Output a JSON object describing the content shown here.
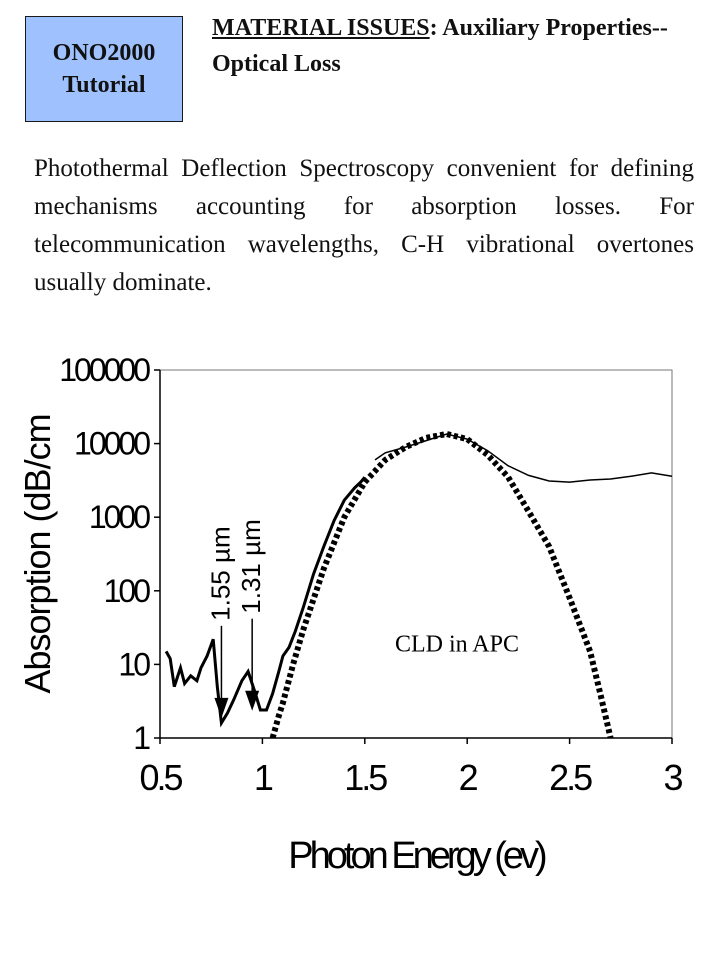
{
  "badge": {
    "line1": "ONO2000",
    "line2": "Tutorial"
  },
  "title": {
    "underlined": "MATERIAL ISSUES",
    "rest": ":  Auxiliary Properties--Optical Loss"
  },
  "body": "Photothermal Deflection Spectroscopy convenient for defining mechanisms accounting for absorption losses.  For telecommunication wavelengths, C-H vibrational overtones usually dominate.",
  "chart_data": {
    "type": "line",
    "xlabel": "Photon Energy (ev)",
    "ylabel": "Absorption (dB/cm",
    "xlim": [
      0.5,
      3
    ],
    "ylim": [
      1,
      100000
    ],
    "yscale": "log",
    "x_ticks": [
      "0.5",
      "1",
      "1.5",
      "2",
      "2.5",
      "3"
    ],
    "y_ticks": [
      "1",
      "10",
      "100",
      "1000",
      "10000",
      "100000"
    ],
    "grid": false,
    "annotations": [
      {
        "text": "1.55 µm",
        "arrow_x": 0.8,
        "arrow_y": 2
      },
      {
        "text": "1.31 µm",
        "arrow_x": 0.95,
        "arrow_y": 2.5
      },
      {
        "text": "CLD in APC",
        "x": 1.95,
        "y": 15
      }
    ],
    "series": [
      {
        "style": "solid",
        "points": [
          [
            0.53,
            15
          ],
          [
            0.55,
            12
          ],
          [
            0.57,
            5
          ],
          [
            0.6,
            9
          ],
          [
            0.62,
            5.5
          ],
          [
            0.65,
            7
          ],
          [
            0.68,
            6
          ],
          [
            0.7,
            9
          ],
          [
            0.73,
            13
          ],
          [
            0.76,
            22
          ],
          [
            0.78,
            5
          ],
          [
            0.8,
            1.6
          ],
          [
            0.83,
            2.2
          ],
          [
            0.86,
            3.3
          ],
          [
            0.9,
            6
          ],
          [
            0.93,
            8
          ],
          [
            0.96,
            4.5
          ],
          [
            0.99,
            2.4
          ],
          [
            1.02,
            2.4
          ],
          [
            1.05,
            4
          ],
          [
            1.08,
            8
          ],
          [
            1.1,
            13
          ],
          [
            1.13,
            17
          ],
          [
            1.16,
            28
          ],
          [
            1.2,
            60
          ],
          [
            1.25,
            170
          ],
          [
            1.3,
            400
          ],
          [
            1.35,
            900
          ],
          [
            1.4,
            1700
          ],
          [
            1.45,
            2500
          ],
          [
            1.48,
            3000
          ],
          [
            1.5,
            3500
          ]
        ]
      },
      {
        "style": "thin",
        "points": [
          [
            1.55,
            6000
          ],
          [
            1.6,
            7500
          ],
          [
            1.7,
            9000
          ],
          [
            1.8,
            11000
          ],
          [
            1.9,
            13500
          ],
          [
            2.0,
            11500
          ],
          [
            2.1,
            8000
          ],
          [
            2.2,
            5000
          ],
          [
            2.3,
            3700
          ],
          [
            2.4,
            3100
          ],
          [
            2.5,
            3000
          ],
          [
            2.6,
            3200
          ],
          [
            2.7,
            3300
          ],
          [
            2.8,
            3600
          ],
          [
            2.9,
            4000
          ],
          [
            3.0,
            3600
          ]
        ]
      },
      {
        "style": "dotted-thick",
        "points": [
          [
            1.05,
            1
          ],
          [
            1.08,
            2
          ],
          [
            1.1,
            3
          ],
          [
            1.15,
            10
          ],
          [
            1.2,
            30
          ],
          [
            1.3,
            200
          ],
          [
            1.4,
            1000
          ],
          [
            1.5,
            3000
          ],
          [
            1.6,
            6000
          ],
          [
            1.7,
            9000
          ],
          [
            1.8,
            12000
          ],
          [
            1.9,
            13500
          ],
          [
            2.0,
            11500
          ],
          [
            2.1,
            7000
          ],
          [
            2.2,
            3500
          ],
          [
            2.3,
            1200
          ],
          [
            2.4,
            400
          ],
          [
            2.5,
            80
          ],
          [
            2.6,
            15
          ],
          [
            2.65,
            4
          ],
          [
            2.7,
            1
          ]
        ]
      }
    ]
  }
}
